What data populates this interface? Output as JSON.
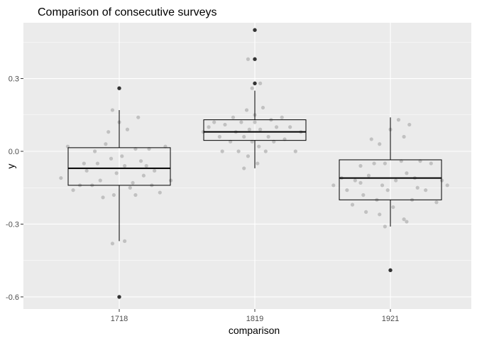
{
  "chart_data": {
    "type": "boxplot",
    "title": "Comparison of consecutive surveys",
    "xlabel": "comparison",
    "ylabel": "y",
    "categories": [
      "1718",
      "1819",
      "1921"
    ],
    "ylim": [
      -0.65,
      0.53
    ],
    "yticks": [
      -0.6,
      -0.3,
      0.0,
      0.3
    ],
    "ytick_labels": [
      "-0.6",
      "-0.3",
      "0.0",
      "0.3"
    ],
    "grid": true,
    "colors": {
      "panel": "#ebebeb",
      "grid": "#ffffff",
      "box": "#000000",
      "jitter": "#bdbdbd",
      "outlier": "#333333"
    },
    "boxes": [
      {
        "category": "1718",
        "whisker_low": -0.37,
        "q1": -0.14,
        "median": -0.07,
        "q3": 0.015,
        "whisker_high": 0.17,
        "outliers": [
          0.26,
          -0.6
        ]
      },
      {
        "category": "1819",
        "whisker_low": -0.07,
        "q1": 0.045,
        "median": 0.08,
        "q3": 0.13,
        "whisker_high": 0.25,
        "outliers": [
          0.5,
          0.38,
          0.28
        ]
      },
      {
        "category": "1921",
        "whisker_low": -0.31,
        "q1": -0.2,
        "median": -0.11,
        "q3": -0.035,
        "whisker_high": 0.14,
        "outliers": [
          -0.49
        ]
      }
    ],
    "jitter_points": [
      {
        "category": "1718",
        "offset": -0.38,
        "y": 0.02
      },
      {
        "category": "1718",
        "offset": -0.43,
        "y": -0.11
      },
      {
        "category": "1718",
        "offset": -0.34,
        "y": -0.16
      },
      {
        "category": "1718",
        "offset": -0.29,
        "y": -0.14
      },
      {
        "category": "1718",
        "offset": -0.24,
        "y": -0.08
      },
      {
        "category": "1718",
        "offset": -0.2,
        "y": -0.14
      },
      {
        "category": "1718",
        "offset": -0.18,
        "y": 0.0
      },
      {
        "category": "1718",
        "offset": -0.16,
        "y": -0.05
      },
      {
        "category": "1718",
        "offset": -0.14,
        "y": -0.12
      },
      {
        "category": "1718",
        "offset": -0.12,
        "y": -0.19
      },
      {
        "category": "1718",
        "offset": -0.1,
        "y": 0.03
      },
      {
        "category": "1718",
        "offset": -0.08,
        "y": 0.08
      },
      {
        "category": "1718",
        "offset": -0.06,
        "y": -0.03
      },
      {
        "category": "1718",
        "offset": -0.04,
        "y": -0.18
      },
      {
        "category": "1718",
        "offset": -0.02,
        "y": -0.09
      },
      {
        "category": "1718",
        "offset": -0.05,
        "y": 0.17
      },
      {
        "category": "1718",
        "offset": 0.0,
        "y": 0.12
      },
      {
        "category": "1718",
        "offset": 0.02,
        "y": -0.02
      },
      {
        "category": "1718",
        "offset": 0.04,
        "y": -0.06
      },
      {
        "category": "1718",
        "offset": 0.06,
        "y": 0.09
      },
      {
        "category": "1718",
        "offset": 0.08,
        "y": -0.15
      },
      {
        "category": "1718",
        "offset": 0.1,
        "y": -0.13
      },
      {
        "category": "1718",
        "offset": 0.12,
        "y": 0.01
      },
      {
        "category": "1718",
        "offset": 0.14,
        "y": 0.14
      },
      {
        "category": "1718",
        "offset": 0.16,
        "y": -0.04
      },
      {
        "category": "1718",
        "offset": 0.18,
        "y": -0.1
      },
      {
        "category": "1718",
        "offset": 0.2,
        "y": -0.06
      },
      {
        "category": "1718",
        "offset": 0.22,
        "y": 0.01
      },
      {
        "category": "1718",
        "offset": 0.24,
        "y": -0.14
      },
      {
        "category": "1718",
        "offset": 0.26,
        "y": -0.08
      },
      {
        "category": "1718",
        "offset": 0.3,
        "y": -0.17
      },
      {
        "category": "1718",
        "offset": 0.34,
        "y": 0.02
      },
      {
        "category": "1718",
        "offset": 0.38,
        "y": -0.12
      },
      {
        "category": "1718",
        "offset": -0.26,
        "y": -0.05
      },
      {
        "category": "1718",
        "offset": 0.12,
        "y": -0.18
      },
      {
        "category": "1718",
        "offset": -0.05,
        "y": -0.38
      },
      {
        "category": "1718",
        "offset": 0.04,
        "y": -0.37
      },
      {
        "category": "1819",
        "offset": -0.38,
        "y": 0.08
      },
      {
        "category": "1819",
        "offset": -0.34,
        "y": 0.1
      },
      {
        "category": "1819",
        "offset": -0.3,
        "y": 0.12
      },
      {
        "category": "1819",
        "offset": -0.26,
        "y": 0.06
      },
      {
        "category": "1819",
        "offset": -0.24,
        "y": 0.0
      },
      {
        "category": "1819",
        "offset": -0.22,
        "y": 0.11
      },
      {
        "category": "1819",
        "offset": -0.18,
        "y": 0.04
      },
      {
        "category": "1819",
        "offset": -0.16,
        "y": 0.14
      },
      {
        "category": "1819",
        "offset": -0.14,
        "y": 0.08
      },
      {
        "category": "1819",
        "offset": -0.12,
        "y": 0.0
      },
      {
        "category": "1819",
        "offset": -0.1,
        "y": 0.12
      },
      {
        "category": "1819",
        "offset": -0.08,
        "y": 0.06
      },
      {
        "category": "1819",
        "offset": -0.06,
        "y": 0.17
      },
      {
        "category": "1819",
        "offset": -0.05,
        "y": -0.02
      },
      {
        "category": "1819",
        "offset": -0.04,
        "y": 0.09
      },
      {
        "category": "1819",
        "offset": -0.02,
        "y": 0.04
      },
      {
        "category": "1819",
        "offset": 0.0,
        "y": 0.15
      },
      {
        "category": "1819",
        "offset": 0.02,
        "y": -0.05
      },
      {
        "category": "1819",
        "offset": 0.03,
        "y": 0.02
      },
      {
        "category": "1819",
        "offset": 0.04,
        "y": 0.09
      },
      {
        "category": "1819",
        "offset": 0.06,
        "y": 0.18
      },
      {
        "category": "1819",
        "offset": 0.08,
        "y": 0.0
      },
      {
        "category": "1819",
        "offset": 0.1,
        "y": 0.06
      },
      {
        "category": "1819",
        "offset": 0.12,
        "y": 0.13
      },
      {
        "category": "1819",
        "offset": 0.14,
        "y": 0.04
      },
      {
        "category": "1819",
        "offset": 0.16,
        "y": 0.1
      },
      {
        "category": "1819",
        "offset": 0.2,
        "y": 0.14
      },
      {
        "category": "1819",
        "offset": 0.22,
        "y": 0.05
      },
      {
        "category": "1819",
        "offset": 0.26,
        "y": 0.1
      },
      {
        "category": "1819",
        "offset": 0.3,
        "y": 0.0
      },
      {
        "category": "1819",
        "offset": 0.34,
        "y": 0.08
      },
      {
        "category": "1819",
        "offset": -0.08,
        "y": -0.07
      },
      {
        "category": "1819",
        "offset": -0.02,
        "y": 0.26
      },
      {
        "category": "1819",
        "offset": -0.05,
        "y": 0.38
      },
      {
        "category": "1819",
        "offset": 0.04,
        "y": 0.28
      },
      {
        "category": "1819",
        "offset": 0.0,
        "y": 0.12
      },
      {
        "category": "1921",
        "offset": -0.42,
        "y": -0.14
      },
      {
        "category": "1921",
        "offset": -0.36,
        "y": -0.11
      },
      {
        "category": "1921",
        "offset": -0.32,
        "y": -0.16
      },
      {
        "category": "1921",
        "offset": -0.28,
        "y": -0.22
      },
      {
        "category": "1921",
        "offset": -0.26,
        "y": -0.12
      },
      {
        "category": "1921",
        "offset": -0.22,
        "y": -0.06
      },
      {
        "category": "1921",
        "offset": -0.2,
        "y": -0.18
      },
      {
        "category": "1921",
        "offset": -0.18,
        "y": -0.25
      },
      {
        "category": "1921",
        "offset": -0.16,
        "y": -0.1
      },
      {
        "category": "1921",
        "offset": -0.14,
        "y": 0.05
      },
      {
        "category": "1921",
        "offset": -0.12,
        "y": -0.05
      },
      {
        "category": "1921",
        "offset": -0.1,
        "y": -0.2
      },
      {
        "category": "1921",
        "offset": -0.08,
        "y": 0.03
      },
      {
        "category": "1921",
        "offset": -0.06,
        "y": -0.14
      },
      {
        "category": "1921",
        "offset": -0.04,
        "y": -0.05
      },
      {
        "category": "1921",
        "offset": -0.04,
        "y": -0.31
      },
      {
        "category": "1921",
        "offset": -0.02,
        "y": -0.16
      },
      {
        "category": "1921",
        "offset": 0.0,
        "y": 0.09
      },
      {
        "category": "1921",
        "offset": 0.02,
        "y": -0.23
      },
      {
        "category": "1921",
        "offset": 0.04,
        "y": -0.12
      },
      {
        "category": "1921",
        "offset": 0.06,
        "y": 0.13
      },
      {
        "category": "1921",
        "offset": 0.08,
        "y": -0.04
      },
      {
        "category": "1921",
        "offset": 0.1,
        "y": -0.28
      },
      {
        "category": "1921",
        "offset": 0.12,
        "y": -0.09
      },
      {
        "category": "1921",
        "offset": 0.14,
        "y": 0.11
      },
      {
        "category": "1921",
        "offset": 0.16,
        "y": -0.2
      },
      {
        "category": "1921",
        "offset": 0.18,
        "y": -0.11
      },
      {
        "category": "1921",
        "offset": 0.2,
        "y": -0.15
      },
      {
        "category": "1921",
        "offset": 0.22,
        "y": -0.04
      },
      {
        "category": "1921",
        "offset": 0.26,
        "y": -0.16
      },
      {
        "category": "1921",
        "offset": 0.3,
        "y": -0.05
      },
      {
        "category": "1921",
        "offset": 0.34,
        "y": -0.21
      },
      {
        "category": "1921",
        "offset": 0.38,
        "y": -0.12
      },
      {
        "category": "1921",
        "offset": 0.42,
        "y": -0.14
      },
      {
        "category": "1921",
        "offset": 0.1,
        "y": 0.06
      },
      {
        "category": "1921",
        "offset": -0.22,
        "y": -0.13
      },
      {
        "category": "1921",
        "offset": 0.12,
        "y": -0.29
      },
      {
        "category": "1921",
        "offset": -0.08,
        "y": -0.26
      }
    ]
  }
}
